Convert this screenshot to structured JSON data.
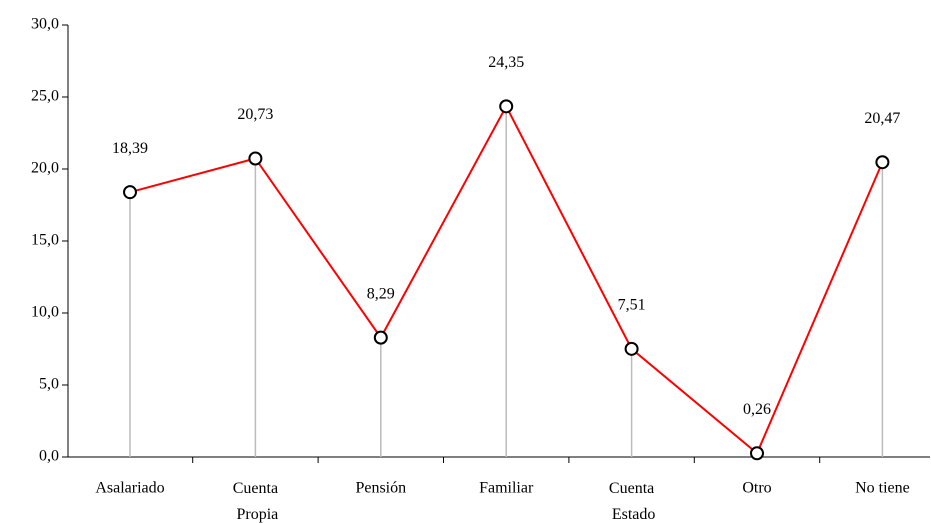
{
  "chart_data": {
    "type": "line",
    "categories": [
      "Asalariado",
      "Cuenta Propia",
      "Pensión",
      "Familiar",
      "Cuenta Estado",
      "Otro",
      "No tiene"
    ],
    "series": [
      {
        "color": "#ff0000",
        "values": [
          18.39,
          20.73,
          8.29,
          24.35,
          7.51,
          0.26,
          20.47
        ],
        "value_labels": [
          "18,39",
          "20,73",
          "8,29",
          "24,35",
          "7,51",
          "0,26",
          "20,47"
        ]
      }
    ],
    "ylim": [
      0,
      30
    ],
    "yticks": [
      {
        "value": 0,
        "label": "0,0"
      },
      {
        "value": 5,
        "label": "5,0"
      },
      {
        "value": 10,
        "label": "10,0"
      },
      {
        "value": 15,
        "label": "15,0"
      },
      {
        "value": 20,
        "label": "20,0"
      },
      {
        "value": 25,
        "label": "25,0"
      },
      {
        "value": 30,
        "label": "30,0"
      }
    ],
    "drop_lines": true
  }
}
